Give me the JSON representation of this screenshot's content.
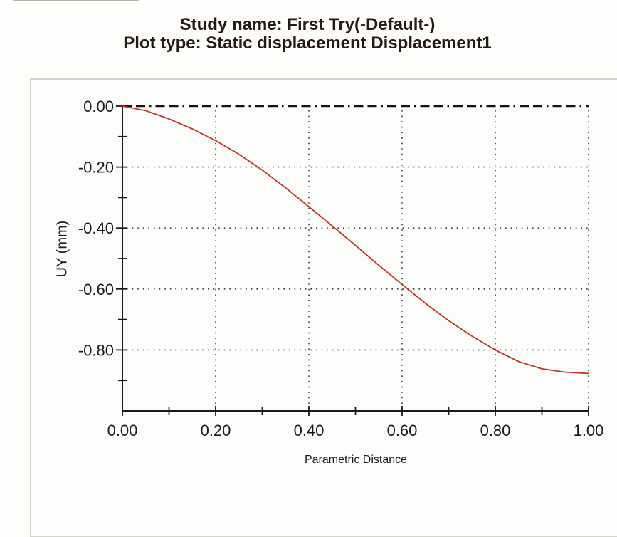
{
  "chart_data": {
    "type": "line",
    "title_lines": [
      "Study name: First Try(-Default-)",
      "Plot type: Static displacement Displacement1"
    ],
    "xlabel": "Parametric Distance",
    "ylabel": "UY (mm)",
    "xlim": [
      0.0,
      1.0
    ],
    "ylim": [
      -1.0,
      0.0
    ],
    "grid": "dotted",
    "legend": "none",
    "zero_reference_line": "black dash-dot horizontal line at UY = 0.00",
    "x_major_ticks": [
      0.0,
      0.2,
      0.4,
      0.6,
      0.8,
      1.0
    ],
    "x_tick_labels": [
      "0.00",
      "0.20",
      "0.40",
      "0.60",
      "0.80",
      "1.00"
    ],
    "x_minor_ticks": [
      0.1,
      0.3,
      0.5,
      0.7,
      0.9
    ],
    "y_major_ticks": [
      0.0,
      -0.2,
      -0.4,
      -0.6,
      -0.8
    ],
    "y_tick_labels": [
      "0.00",
      "-0.20",
      "-0.40",
      "-0.60",
      "-0.80"
    ],
    "y_minor_ticks": [
      -0.1,
      -0.3,
      -0.5,
      -0.7,
      -0.9
    ],
    "series": [
      {
        "name": "UY",
        "color": "#c0342b",
        "x": [
          0.0,
          0.05,
          0.1,
          0.15,
          0.2,
          0.25,
          0.3,
          0.35,
          0.4,
          0.45,
          0.5,
          0.55,
          0.6,
          0.65,
          0.7,
          0.75,
          0.8,
          0.85,
          0.9,
          0.95,
          1.0
        ],
        "y": [
          0.0,
          -0.015,
          -0.042,
          -0.075,
          -0.113,
          -0.158,
          -0.21,
          -0.268,
          -0.33,
          -0.393,
          -0.457,
          -0.522,
          -0.585,
          -0.647,
          -0.704,
          -0.755,
          -0.8,
          -0.838,
          -0.862,
          -0.873,
          -0.877
        ]
      }
    ],
    "colors": {
      "curve": "#c0342b",
      "axis": "#1a1a1a",
      "grid_dots": "#3c3c3c",
      "zero_line": "#141414",
      "frame": "#d6d3cb",
      "text": "#1c1c1c",
      "background": "#fdfdfb"
    }
  }
}
